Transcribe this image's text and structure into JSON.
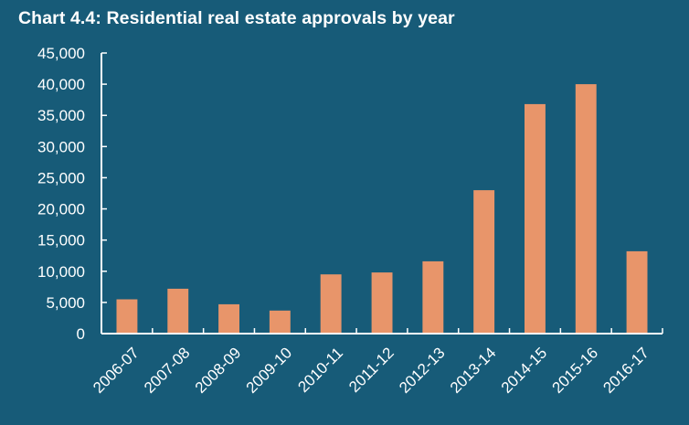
{
  "colors": {
    "background": "#175b78",
    "bar": "#e8956a",
    "axis": "#ffffff",
    "text": "#ffffff"
  },
  "chart_data": {
    "type": "bar",
    "title": "Chart 4.4: Residential real estate approvals by year",
    "xlabel": "",
    "ylabel": "",
    "categories": [
      "2006-07",
      "2007-08",
      "2008-09",
      "2009-10",
      "2010-11",
      "2011-12",
      "2012-13",
      "2013-14",
      "2014-15",
      "2015-16",
      "2016-17"
    ],
    "values": [
      5500,
      7200,
      4700,
      3700,
      9500,
      9800,
      11600,
      23000,
      36800,
      40000,
      13200
    ],
    "ylim": [
      0,
      45000
    ],
    "yticks": [
      0,
      5000,
      10000,
      15000,
      20000,
      25000,
      30000,
      35000,
      40000,
      45000
    ],
    "ytick_labels": [
      "0",
      "5,000",
      "10,000",
      "15,000",
      "20,000",
      "25,000",
      "30,000",
      "35,000",
      "40,000",
      "45,000"
    ],
    "grid": false,
    "legend": "none"
  }
}
